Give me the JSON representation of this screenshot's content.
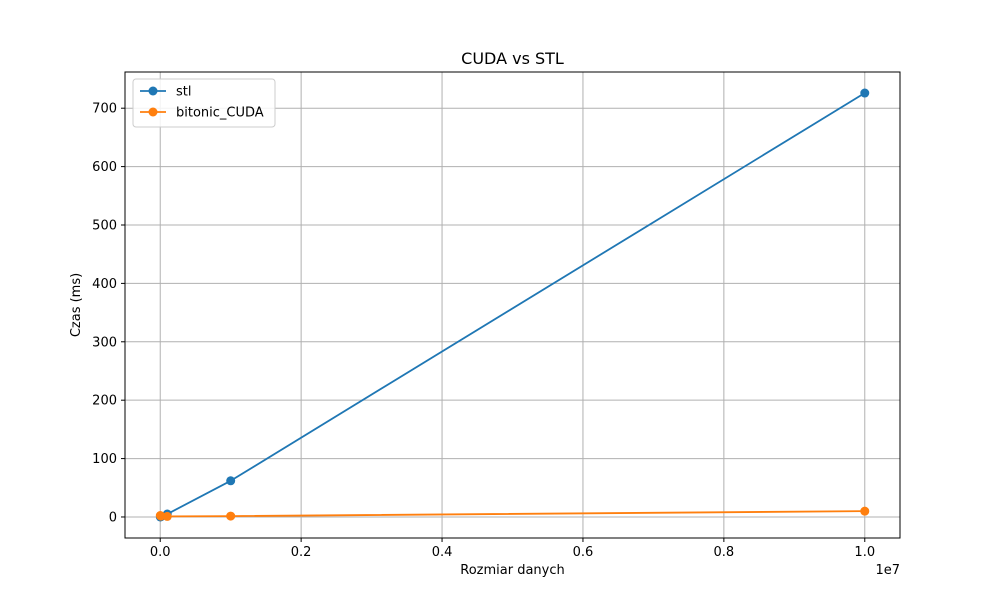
{
  "chart_data": {
    "type": "line",
    "title": "CUDA vs STL",
    "xlabel": "Rozmiar danych",
    "ylabel": "Czas (ms)",
    "x_offset_label": "1e7",
    "x_scale": 10000000,
    "xlim": [
      -500000,
      10500000
    ],
    "ylim": [
      -36,
      762
    ],
    "x_ticks": [
      0,
      2000000,
      4000000,
      6000000,
      8000000,
      10000000
    ],
    "x_tick_labels": [
      "0.0",
      "0.2",
      "0.4",
      "0.6",
      "0.8",
      "1.0"
    ],
    "y_ticks": [
      0,
      100,
      200,
      300,
      400,
      500,
      600,
      700
    ],
    "y_tick_labels": [
      "0",
      "100",
      "200",
      "300",
      "400",
      "500",
      "600",
      "700"
    ],
    "grid": true,
    "legend_position": "top-left",
    "series": [
      {
        "name": "stl",
        "color": "#1f77b4",
        "x": [
          1000,
          10000,
          100000,
          1000000,
          10000000
        ],
        "y": [
          0.05,
          0.5,
          5,
          62,
          726
        ]
      },
      {
        "name": "bitonic_CUDA",
        "color": "#ff7f0e",
        "x": [
          1000,
          10000,
          100000,
          1000000,
          10000000
        ],
        "y": [
          2.5,
          1.5,
          1,
          1.5,
          10
        ]
      }
    ]
  }
}
